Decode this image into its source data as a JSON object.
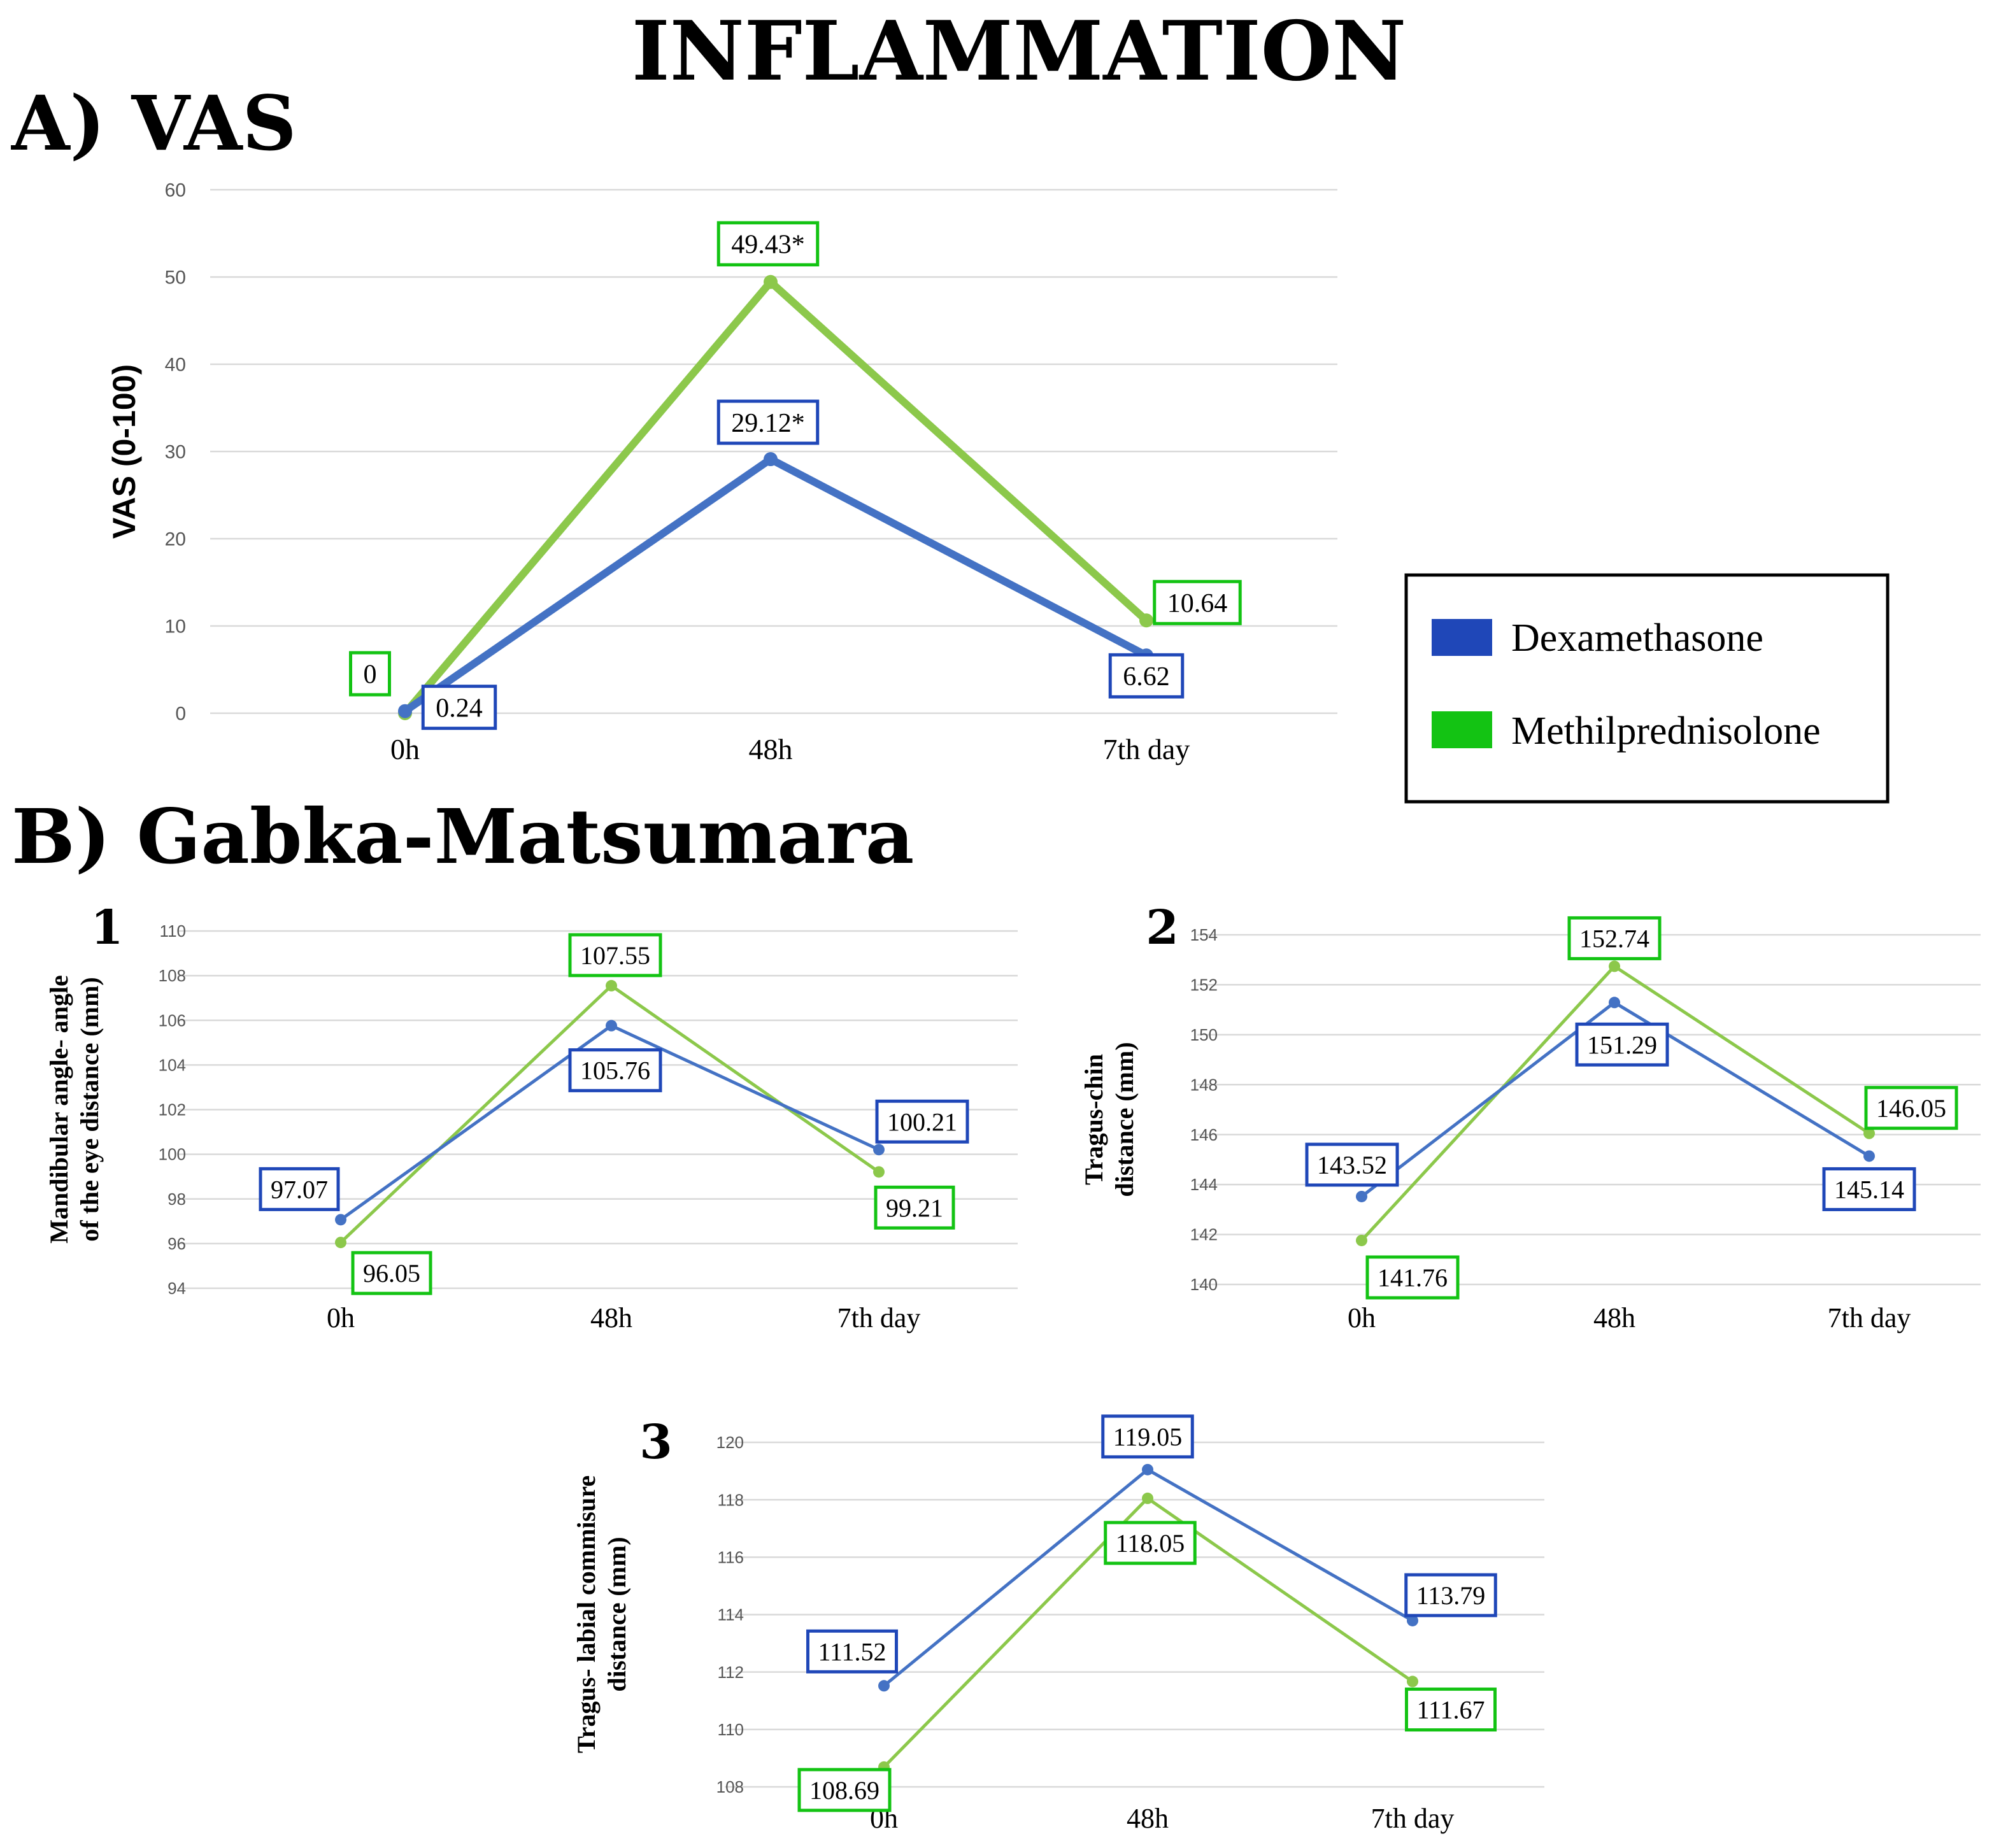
{
  "figure": {
    "main_title": "INFLAMMATION",
    "section_a_label": "A) VAS",
    "section_b_label": "B)  Gabka-Matsumara"
  },
  "legend": {
    "dex_label": "Dexamethasone",
    "methyl_label": "Methilprednisolone"
  },
  "colors": {
    "dex_line": "#4472C4",
    "methyl_line": "#8CC84B",
    "dex_box": "#1F47B8",
    "methyl_box": "#13C313",
    "grid": "#D9D9D9"
  },
  "chart_data": [
    {
      "id": "vas",
      "type": "line",
      "panel_number": "",
      "title": "",
      "ylabel": "VAS (0-100)",
      "xlabel": "",
      "categories": [
        "0h",
        "48h",
        "7th day"
      ],
      "ylim": [
        0,
        60
      ],
      "yticks": [
        0,
        10,
        20,
        30,
        40,
        50,
        60
      ],
      "ytick_labels": [
        "0",
        "10",
        "20",
        "30",
        "40",
        "50",
        "60"
      ],
      "series": [
        {
          "name": "Dexamethasone",
          "values": [
            0.24,
            29.12,
            6.62
          ],
          "labels": [
            "0.24",
            "29.12*",
            "6.62"
          ]
        },
        {
          "name": "Methilprednisolone",
          "values": [
            0,
            49.43,
            10.64
          ],
          "labels": [
            "0",
            "49.43*",
            "10.64"
          ]
        }
      ]
    },
    {
      "id": "gm1",
      "type": "line",
      "panel_number": "1",
      "title": "",
      "ylabel": [
        "Mandibular angle- angle",
        "of the eye distance (mm)"
      ],
      "xlabel": "",
      "categories": [
        "0h",
        "48h",
        "7th day"
      ],
      "ylim": [
        94,
        110
      ],
      "yticks": [
        94,
        96,
        98,
        100,
        102,
        104,
        106,
        108,
        110
      ],
      "ytick_labels": [
        "94",
        "96",
        "98",
        "100",
        "102",
        "104",
        "106",
        "108",
        "110"
      ],
      "series": [
        {
          "name": "Dexamethasone",
          "values": [
            97.07,
            105.76,
            100.21
          ],
          "labels": [
            "97.07",
            "105.76",
            "100.21"
          ]
        },
        {
          "name": "Methilprednisolone",
          "values": [
            96.05,
            107.55,
            99.21
          ],
          "labels": [
            "96.05",
            "107.55",
            "99.21"
          ]
        }
      ]
    },
    {
      "id": "gm2",
      "type": "line",
      "panel_number": "2",
      "title": "",
      "ylabel": [
        "Tragus-chin",
        "distance (mm)"
      ],
      "xlabel": "",
      "categories": [
        "0h",
        "48h",
        "7th day"
      ],
      "ylim": [
        140,
        154
      ],
      "yticks": [
        140,
        142,
        144,
        146,
        148,
        150,
        152,
        154
      ],
      "ytick_labels": [
        "140",
        "142",
        "144",
        "146",
        "148",
        "150",
        "152",
        "154"
      ],
      "series": [
        {
          "name": "Dexamethasone",
          "values": [
            143.52,
            151.29,
            145.14
          ],
          "labels": [
            "143.52",
            "151.29",
            "145.14"
          ]
        },
        {
          "name": "Methilprednisolone",
          "values": [
            141.76,
            152.74,
            146.05
          ],
          "labels": [
            "141.76",
            "152.74",
            "146.05"
          ]
        }
      ]
    },
    {
      "id": "gm3",
      "type": "line",
      "panel_number": "3",
      "title": "",
      "ylabel": [
        "Tragus- labial commisure",
        "distance (mm)"
      ],
      "xlabel": "",
      "categories": [
        "0h",
        "48h",
        "7th day"
      ],
      "ylim": [
        108,
        120
      ],
      "yticks": [
        108,
        110,
        112,
        114,
        116,
        118,
        120
      ],
      "ytick_labels": [
        "108",
        "110",
        "112",
        "114",
        "116",
        "118",
        "120"
      ],
      "series": [
        {
          "name": "Dexamethasone",
          "values": [
            111.52,
            119.05,
            113.79
          ],
          "labels": [
            "111.52",
            "119.05",
            "113.79"
          ]
        },
        {
          "name": "Methilprednisolone",
          "values": [
            108.69,
            118.05,
            111.67
          ],
          "labels": [
            "108.69",
            "118.05",
            "111.67"
          ]
        }
      ]
    }
  ]
}
